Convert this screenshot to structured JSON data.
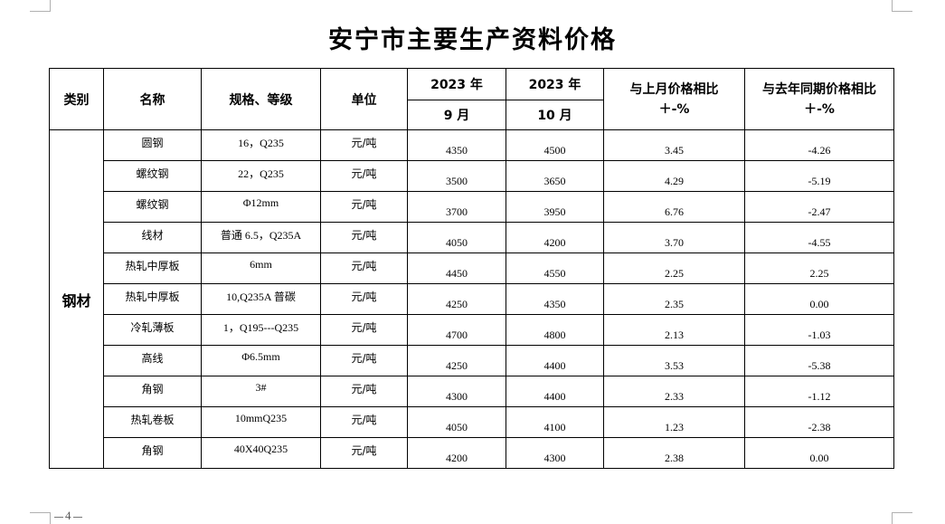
{
  "title": "安宁市主要生产资料价格",
  "page_number": "4",
  "headers": {
    "category": "类别",
    "name": "名称",
    "spec": "规格、等级",
    "unit": "单位",
    "year_sep": "2023 年",
    "month_sep": "9 月",
    "year_oct": "2023 年",
    "month_oct": "10 月",
    "mom_line1": "与上月价格相比",
    "mom_line2": "＋-%",
    "yoy_line1": "与去年同期价格相比",
    "yoy_line2": "＋-%"
  },
  "category": "钢材",
  "rows": [
    {
      "name": "圆钢",
      "spec": "16，Q235",
      "unit": "元/吨",
      "sep": "4350",
      "oct": "4500",
      "mom": "3.45",
      "yoy": "-4.26"
    },
    {
      "name": "螺纹钢",
      "spec": "22，Q235",
      "unit": "元/吨",
      "sep": "3500",
      "oct": "3650",
      "mom": "4.29",
      "yoy": "-5.19"
    },
    {
      "name": "螺纹钢",
      "spec": "Φ12mm",
      "unit": "元/吨",
      "sep": "3700",
      "oct": "3950",
      "mom": "6.76",
      "yoy": "-2.47"
    },
    {
      "name": "线材",
      "spec": "普通 6.5，Q235A",
      "unit": "元/吨",
      "sep": "4050",
      "oct": "4200",
      "mom": "3.70",
      "yoy": "-4.55"
    },
    {
      "name": "热轧中厚板",
      "spec": "6mm",
      "unit": "元/吨",
      "sep": "4450",
      "oct": "4550",
      "mom": "2.25",
      "yoy": "2.25"
    },
    {
      "name": "热轧中厚板",
      "spec": "10,Q235A 普碳",
      "unit": "元/吨",
      "sep": "4250",
      "oct": "4350",
      "mom": "2.35",
      "yoy": "0.00"
    },
    {
      "name": "冷轧薄板",
      "spec": "1，Q195---Q235",
      "unit": "元/吨",
      "sep": "4700",
      "oct": "4800",
      "mom": "2.13",
      "yoy": "-1.03"
    },
    {
      "name": "高线",
      "spec": "Φ6.5mm",
      "unit": "元/吨",
      "sep": "4250",
      "oct": "4400",
      "mom": "3.53",
      "yoy": "-5.38"
    },
    {
      "name": "角钢",
      "spec": "3#",
      "unit": "元/吨",
      "sep": "4300",
      "oct": "4400",
      "mom": "2.33",
      "yoy": "-1.12"
    },
    {
      "name": "热轧卷板",
      "spec": "10mmQ235",
      "unit": "元/吨",
      "sep": "4050",
      "oct": "4100",
      "mom": "1.23",
      "yoy": "-2.38"
    },
    {
      "name": "角钢",
      "spec": "40X40Q235",
      "unit": "元/吨",
      "sep": "4200",
      "oct": "4300",
      "mom": "2.38",
      "yoy": "0.00"
    }
  ]
}
